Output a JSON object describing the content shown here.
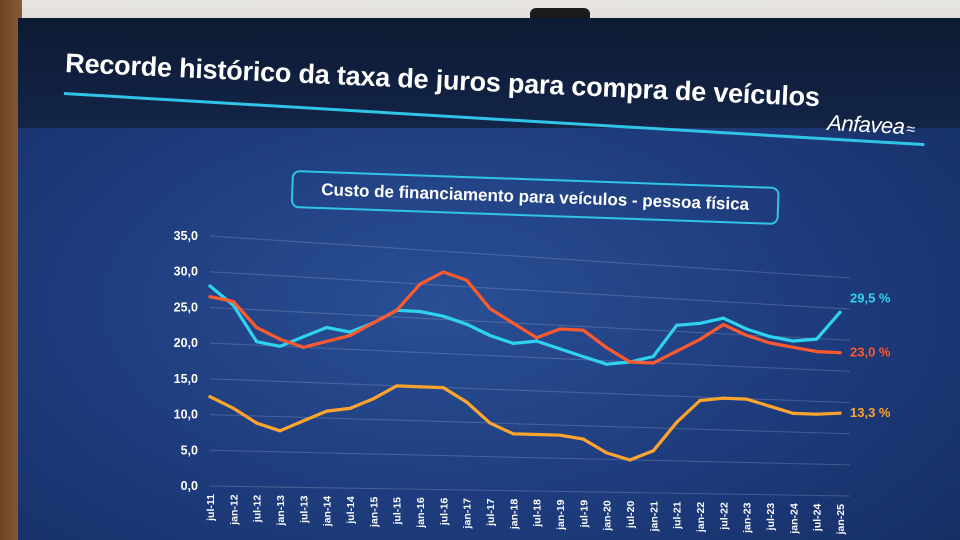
{
  "slide": {
    "title": "Recorde histórico da taxa de juros para compra de veículos",
    "logo": "Anfavea"
  },
  "chart_data": {
    "type": "line",
    "title": "Custo de financiamento para veículos - pessoa física",
    "ylim": [
      0,
      35
    ],
    "yticks": [
      "0,0",
      "5,0",
      "10,0",
      "15,0",
      "20,0",
      "25,0",
      "30,0",
      "35,0"
    ],
    "grid": true,
    "x": [
      "jul-11",
      "jan-12",
      "jul-12",
      "jan-13",
      "jul-13",
      "jan-14",
      "jul-14",
      "jan-15",
      "jul-15",
      "jan-16",
      "jul-16",
      "jan-17",
      "jul-17",
      "jan-18",
      "jul-18",
      "jan-19",
      "jul-19",
      "jan-20",
      "jul-20",
      "jan-21",
      "jul-21",
      "jan-22",
      "jul-22",
      "jan-23",
      "jul-23",
      "jan-24",
      "jul-24",
      "jan-25"
    ],
    "series": [
      {
        "color": "#2fd3f0",
        "end_label": "29,5 %",
        "values": [
          28.0,
          25.5,
          20.5,
          20.0,
          21.5,
          23.0,
          22.5,
          24.0,
          26.0,
          26.0,
          25.5,
          24.5,
          23.0,
          22.0,
          22.5,
          21.5,
          20.5,
          19.5,
          20.0,
          21.0,
          26.0,
          26.5,
          27.5,
          26.0,
          25.0,
          24.5,
          25.0,
          29.5
        ]
      },
      {
        "color": "#ff5a2e",
        "end_label": "23,0 %",
        "values": [
          26.5,
          26.0,
          22.5,
          21.0,
          20.0,
          21.0,
          22.0,
          24.0,
          26.0,
          30.0,
          32.0,
          31.0,
          27.0,
          25.0,
          23.0,
          24.5,
          24.5,
          22.0,
          20.0,
          20.0,
          22.0,
          24.0,
          26.5,
          25.0,
          24.0,
          23.5,
          23.0,
          23.0
        ]
      },
      {
        "color": "#ffa52e",
        "end_label": "13,3 %",
        "values": [
          12.5,
          11.0,
          9.0,
          8.0,
          9.5,
          11.0,
          11.5,
          13.0,
          15.0,
          15.0,
          15.0,
          13.0,
          10.0,
          8.5,
          8.5,
          8.5,
          8.0,
          6.0,
          5.0,
          6.5,
          11.0,
          14.5,
          15.0,
          15.0,
          14.0,
          13.0,
          13.0,
          13.3
        ]
      }
    ]
  }
}
